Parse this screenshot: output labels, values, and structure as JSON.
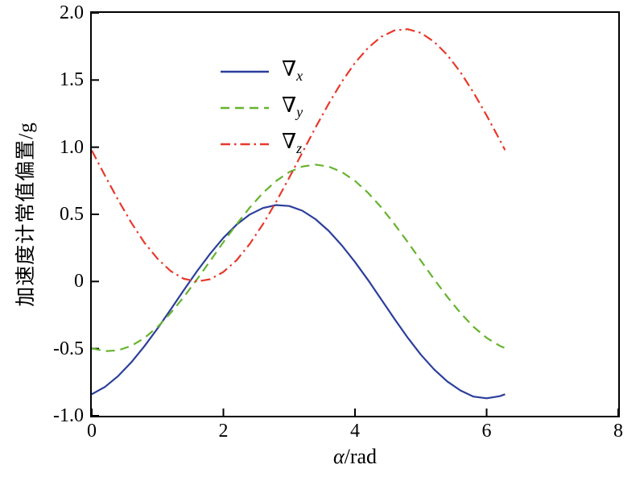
{
  "figure": {
    "background": "#ffffff",
    "axis_color": "#000000"
  },
  "chart_data": {
    "type": "line",
    "title": "",
    "xlabel_var": "α",
    "xlabel_rest": "/rad",
    "ylabel": "加速度计常值偏置/g",
    "xlim": [
      0,
      8
    ],
    "ylim": [
      -1,
      2
    ],
    "xticks": [
      0,
      2,
      4,
      6,
      8
    ],
    "xtick_labels": [
      "0",
      "2",
      "4",
      "6",
      "8"
    ],
    "yticks": [
      -1,
      -0.5,
      0,
      0.5,
      1,
      1.5,
      2
    ],
    "ytick_labels": [
      "-1.0",
      "-0.5",
      "0",
      "0.5",
      "1.0",
      "1.5",
      "2.0"
    ],
    "grid": false,
    "legend_position": "upper-left",
    "x": [
      0,
      0.2,
      0.4,
      0.6,
      0.8,
      1.0,
      1.2,
      1.4,
      1.6,
      1.8,
      2.0,
      2.2,
      2.4,
      2.6,
      2.8,
      3.0,
      3.2,
      3.4,
      3.6,
      3.8,
      4.0,
      4.2,
      4.4,
      4.6,
      4.8,
      5.0,
      5.2,
      5.4,
      5.6,
      5.8,
      6.0,
      6.2,
      6.28
    ],
    "series": [
      {
        "id": "x",
        "symbol": "∇",
        "subscript": "x",
        "color": "#2b3f9b",
        "dash": "solid",
        "values": [
          -0.84,
          -0.785,
          -0.705,
          -0.603,
          -0.482,
          -0.349,
          -0.208,
          -0.064,
          0.077,
          0.208,
          0.325,
          0.423,
          0.498,
          0.547,
          0.569,
          0.562,
          0.527,
          0.464,
          0.377,
          0.269,
          0.145,
          0.009,
          -0.134,
          -0.278,
          -0.418,
          -0.545,
          -0.654,
          -0.744,
          -0.811,
          -0.857,
          -0.87,
          -0.854,
          -0.84
        ]
      },
      {
        "id": "y",
        "symbol": "∇",
        "subscript": "y",
        "color": "#66b32e",
        "dash": "dashed",
        "values": [
          -0.497,
          -0.519,
          -0.513,
          -0.48,
          -0.421,
          -0.338,
          -0.234,
          -0.115,
          0.017,
          0.154,
          0.293,
          0.426,
          0.55,
          0.659,
          0.748,
          0.815,
          0.856,
          0.87,
          0.856,
          0.815,
          0.749,
          0.659,
          0.551,
          0.427,
          0.294,
          0.155,
          0.018,
          -0.113,
          -0.233,
          -0.337,
          -0.42,
          -0.479,
          -0.496
        ]
      },
      {
        "id": "z",
        "symbol": "∇",
        "subscript": "z",
        "color": "#e8392c",
        "dash": "dashdot",
        "values": [
          0.975,
          0.788,
          0.608,
          0.439,
          0.289,
          0.169,
          0.077,
          0.02,
          0.0,
          0.017,
          0.071,
          0.158,
          0.279,
          0.426,
          0.592,
          0.773,
          0.96,
          1.146,
          1.324,
          1.487,
          1.628,
          1.741,
          1.823,
          1.869,
          1.879,
          1.851,
          1.786,
          1.688,
          1.56,
          1.408,
          1.236,
          1.053,
          0.978
        ]
      }
    ]
  }
}
